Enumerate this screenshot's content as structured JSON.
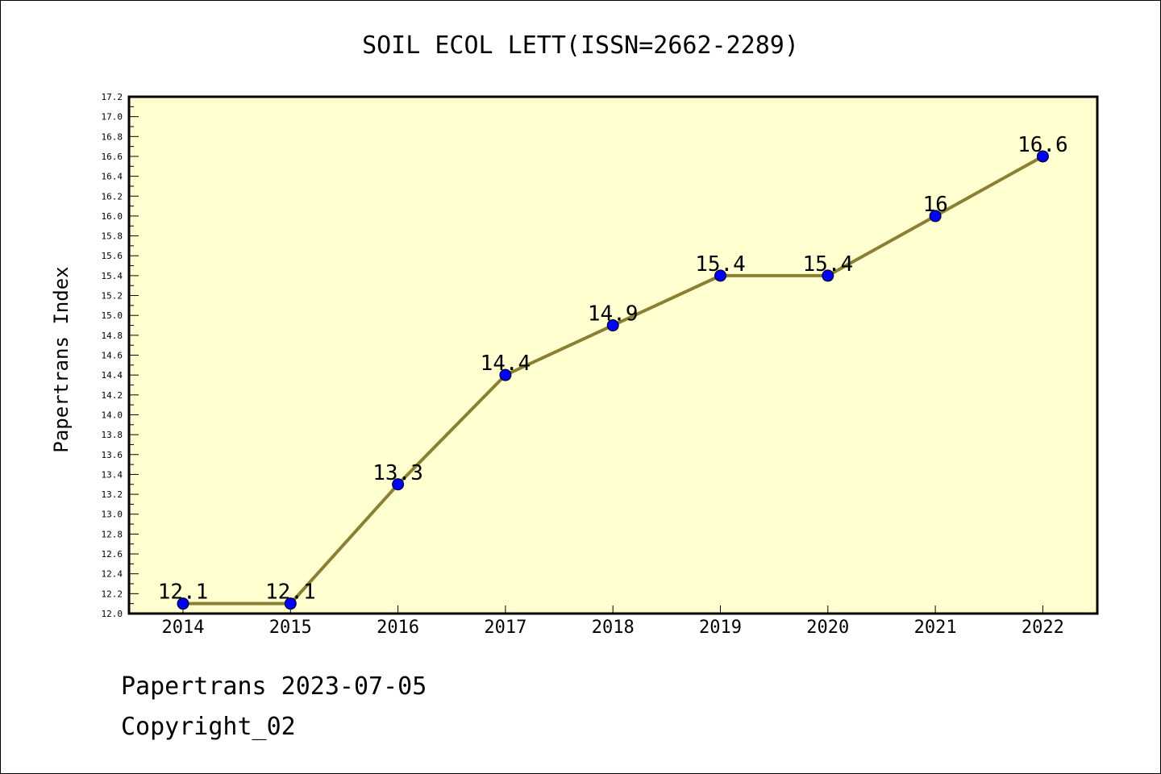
{
  "chart_data": {
    "type": "line",
    "title": "SOIL ECOL LETT(ISSN=2662-2289)",
    "xlabel": "",
    "ylabel": "Papertrans Index",
    "categories": [
      "2014",
      "2015",
      "2016",
      "2017",
      "2018",
      "2019",
      "2020",
      "2021",
      "2022"
    ],
    "series": [
      {
        "values": [
          12.1,
          12.1,
          13.3,
          14.4,
          14.9,
          15.4,
          15.4,
          16.0,
          16.6
        ],
        "labels": [
          "12.1",
          "12.1",
          "13.3",
          "14.4",
          "14.9",
          "15.4",
          "15.4",
          "16",
          "16.6"
        ]
      }
    ],
    "ylim": [
      12.0,
      17.2
    ],
    "yticks": [
      "12.0",
      "12.2",
      "12.4",
      "12.6",
      "12.8",
      "13.0",
      "13.2",
      "13.4",
      "13.6",
      "13.8",
      "14.0",
      "14.2",
      "14.4",
      "14.6",
      "14.8",
      "15.0",
      "15.2",
      "15.4",
      "15.6",
      "15.8",
      "16.0",
      "16.2",
      "16.4",
      "16.6",
      "16.8",
      "17.0",
      "17.2"
    ],
    "grid": false,
    "colors": {
      "plot_background": "#ffffd0",
      "line": "#8b8032",
      "marker": "#0000ff"
    }
  },
  "footer": {
    "line1": "Papertrans 2023-07-05",
    "line2": "Copyright_02"
  }
}
